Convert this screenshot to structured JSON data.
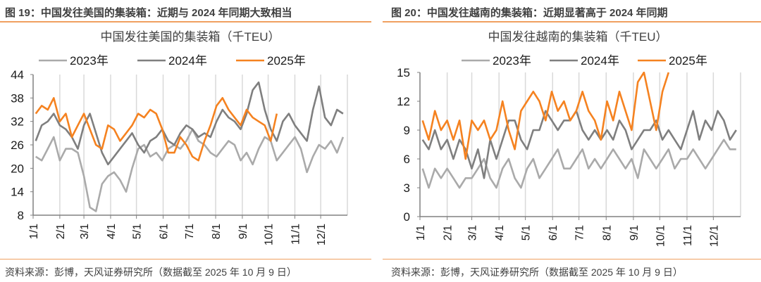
{
  "panels": [
    {
      "figure_title": "图 19：中国发往美国的集装箱：近期与 2024 年同期大致相当",
      "source": "资料来源：彭博，天风证券研究所（数据截至 2025 年 10 月 9 日）"
    },
    {
      "figure_title": "图 20：中国发往越南的集装箱：近期显著高于 2024 年同期",
      "source": "资料来源：彭博，天风证券研究所（数据截至 2025 年 10 月 9 日）"
    }
  ],
  "chart_data": [
    {
      "type": "line",
      "title": "中国发往美国的集装箱（千TEU）",
      "xlabel": "",
      "ylabel": "",
      "x_unit": "week of year",
      "x_tick_labels": [
        "1/1",
        "2/1",
        "3/1",
        "4/1",
        "5/1",
        "6/1",
        "7/1",
        "8/1",
        "9/1",
        "10/1",
        "11/1",
        "12/1"
      ],
      "y_ticks": [
        8,
        14,
        20,
        26,
        32,
        38,
        44
      ],
      "ylim": [
        8,
        44
      ],
      "grid": "vertical",
      "legend": "top",
      "series": [
        {
          "name": "2023年",
          "color": "#aaaaaa",
          "values": [
            23,
            22,
            25,
            28,
            22,
            25,
            25,
            24,
            18,
            10,
            9,
            16,
            18,
            19,
            17,
            14,
            20,
            25,
            26,
            23,
            24,
            22,
            25,
            26,
            25,
            27,
            30,
            27,
            26,
            24,
            23,
            25,
            27,
            26,
            22,
            24,
            21,
            25,
            28,
            27,
            22,
            24,
            26,
            28,
            25,
            19,
            23,
            26,
            25,
            27,
            24,
            28
          ]
        },
        {
          "name": "2024年",
          "color": "#7f7f7f",
          "values": [
            27,
            31,
            32,
            34,
            31,
            30,
            28,
            25,
            31,
            34,
            29,
            24,
            21,
            23,
            25,
            27,
            29,
            26,
            24,
            27,
            28,
            30,
            27,
            26,
            29,
            31,
            30,
            28,
            29,
            28,
            32,
            35,
            33,
            32,
            30,
            34,
            40,
            42,
            35,
            30,
            27,
            32,
            34,
            31,
            29,
            27,
            35,
            41,
            33,
            31,
            35,
            34
          ]
        },
        {
          "name": "2025年",
          "color": "#f58220",
          "values": [
            34,
            36,
            35,
            38,
            32,
            34,
            28,
            31,
            34,
            30,
            26,
            25,
            31,
            30,
            27,
            29,
            31,
            34,
            33,
            35,
            34,
            30,
            24,
            24,
            28,
            26,
            23,
            22,
            27,
            31,
            36,
            38,
            35,
            33,
            31,
            35,
            33,
            32,
            31,
            27,
            34
          ]
        }
      ]
    },
    {
      "type": "line",
      "title": "中国发往越南的集装箱（千TEU）",
      "xlabel": "",
      "ylabel": "",
      "x_unit": "week of year",
      "x_tick_labels": [
        "1/1",
        "2/1",
        "3/1",
        "4/1",
        "5/1",
        "6/1",
        "7/1",
        "8/1",
        "9/1",
        "10/1",
        "11/1",
        "12/1"
      ],
      "y_ticks": [
        0,
        3,
        6,
        9,
        12,
        15
      ],
      "ylim": [
        0,
        15
      ],
      "grid": "vertical",
      "legend": "top",
      "series": [
        {
          "name": "2023年",
          "color": "#aaaaaa",
          "values": [
            5,
            3,
            5,
            4,
            5,
            4,
            3,
            4,
            4,
            5,
            6,
            4,
            3,
            5,
            6,
            4,
            3,
            5,
            6,
            4,
            5,
            6,
            7,
            5,
            5,
            6,
            7,
            5,
            6,
            5,
            6,
            7,
            6,
            5,
            6,
            4,
            7,
            6,
            5,
            6,
            7,
            5,
            6,
            6,
            7,
            6,
            5,
            6,
            7,
            8,
            7,
            7
          ]
        },
        {
          "name": "2024年",
          "color": "#7f7f7f",
          "values": [
            8,
            7,
            9,
            7,
            8,
            6,
            8,
            7,
            5,
            7,
            4,
            8,
            6,
            8,
            10,
            10,
            8,
            7,
            9,
            9,
            11,
            10,
            9,
            10,
            10,
            11,
            9,
            8,
            9,
            8,
            9,
            8,
            10,
            9,
            7,
            8,
            9,
            9,
            10,
            8,
            9,
            8,
            7,
            9,
            11,
            8,
            10,
            9,
            11,
            10,
            8,
            9
          ]
        },
        {
          "name": "2025年",
          "color": "#f58220",
          "values": [
            10,
            8,
            11,
            9,
            10,
            8,
            10,
            6,
            10,
            9,
            10,
            8,
            9,
            12,
            9,
            7,
            11,
            12,
            13,
            12,
            10,
            13,
            11,
            12,
            10,
            11,
            13,
            11,
            10,
            8,
            12,
            10,
            13,
            11,
            9,
            14,
            15,
            12,
            9,
            13,
            15
          ]
        }
      ]
    }
  ]
}
